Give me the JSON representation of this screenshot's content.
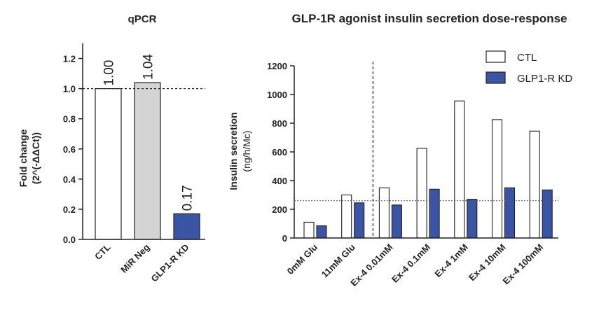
{
  "chart_data": [
    {
      "type": "bar",
      "title": "qPCR",
      "ylabel": "Fold change",
      "ylabel_sub": "(2^(-ΔΔCt))",
      "categories": [
        "CTL",
        "MiR Neg",
        "GLP1-R KD"
      ],
      "values": [
        1.0,
        1.04,
        0.17
      ],
      "data_labels": [
        "1.00",
        "1.04",
        "0.17"
      ],
      "bar_colors": [
        "#ffffff",
        "#d4d4d4",
        "#3a55a4"
      ],
      "ylim": [
        0,
        1.3
      ],
      "yticks": [
        "0.0",
        "0.2",
        "0.4",
        "0.6",
        "0.8",
        "1.0",
        "1.2"
      ],
      "reference_line": 1.0
    },
    {
      "type": "bar",
      "title": "GLP-1R agonist insulin secretion dose-response",
      "ylabel": "Insulin secretion",
      "ylabel_sub": "(ng/h/Mc)",
      "categories": [
        "0mM Glu",
        "11mM Glu",
        "Ex-4 0.01mM",
        "Ex-4 0.1mM",
        "Ex-4 1mM",
        "Ex-4 10mM",
        "Ex-4 100mM"
      ],
      "series": [
        {
          "name": "CTL",
          "color": "#ffffff",
          "values": [
            110,
            300,
            350,
            625,
            955,
            825,
            745
          ]
        },
        {
          "name": "GLP1-R KD",
          "color": "#3a55a4",
          "values": [
            85,
            245,
            230,
            340,
            270,
            350,
            335
          ]
        }
      ],
      "ylim": [
        0,
        1200
      ],
      "yticks": [
        "0",
        "200",
        "400",
        "600",
        "800",
        "1000",
        "1200"
      ],
      "reference_line": 260,
      "legend": "top-right"
    }
  ]
}
